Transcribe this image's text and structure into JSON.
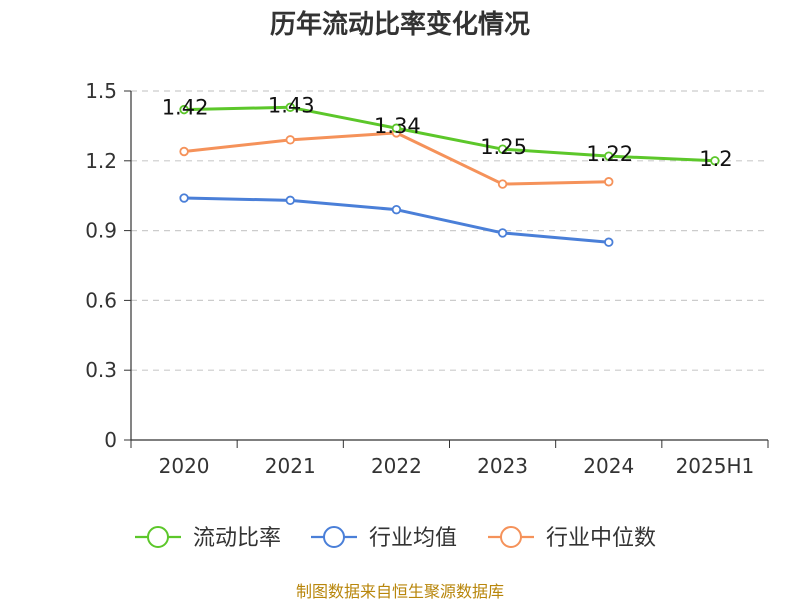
{
  "chart_data": {
    "type": "line",
    "title": "历年流动比率变化情况",
    "categories": [
      "2020",
      "2021",
      "2022",
      "2023",
      "2024",
      "2025H1"
    ],
    "ylim": [
      0,
      1.5
    ],
    "yticks": [
      0,
      0.3,
      0.6,
      0.9,
      1.2,
      1.5
    ],
    "ytick_labels": [
      "0",
      "0.3",
      "0.6",
      "0.9",
      "1.2",
      "1.5"
    ],
    "grid": true,
    "legend_position": "bottom",
    "series": [
      {
        "name": "流动比率",
        "color": "#5cc72a",
        "values": [
          1.42,
          1.43,
          1.34,
          1.25,
          1.22,
          1.2
        ],
        "labels": [
          "1.42",
          "1.43",
          "1.34",
          "1.25",
          "1.22",
          "1.2"
        ]
      },
      {
        "name": "行业均值",
        "color": "#4a7fd8",
        "values": [
          1.04,
          1.03,
          0.99,
          0.89,
          0.85,
          null
        ]
      },
      {
        "name": "行业中位数",
        "color": "#f5925a",
        "values": [
          1.24,
          1.29,
          1.32,
          1.1,
          1.11,
          null
        ]
      }
    ]
  },
  "source_note": "制图数据来自恒生聚源数据库"
}
